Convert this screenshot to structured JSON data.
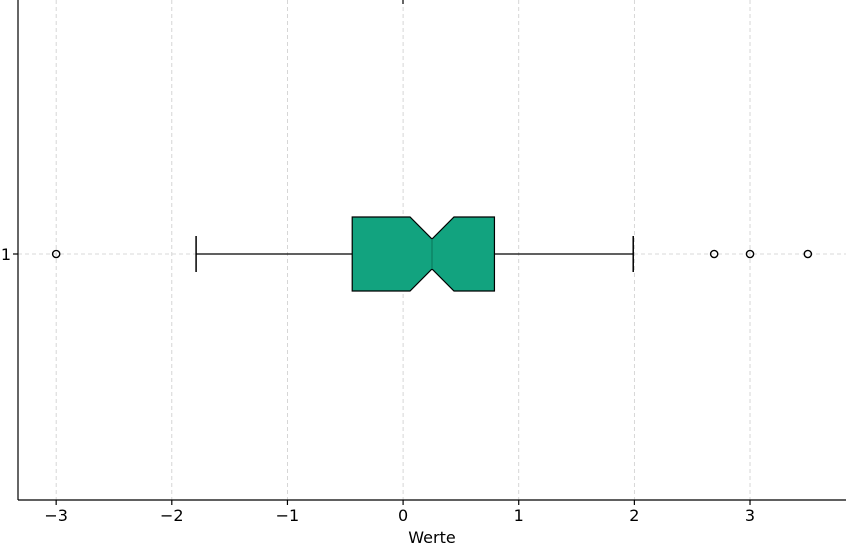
{
  "chart_data": {
    "type": "boxplot",
    "orientation": "horizontal",
    "notched": true,
    "categories": [
      "1"
    ],
    "xlabel": "Werte",
    "xlim": [
      -3.33,
      3.83
    ],
    "xticks": [
      -3,
      -2,
      -1,
      0,
      1,
      2,
      3
    ],
    "xtick_labels": [
      "−3",
      "−2",
      "−1",
      "0",
      "1",
      "2",
      "3"
    ],
    "grid": true,
    "box": {
      "category": "1",
      "whisker_low": -1.79,
      "q1": -0.44,
      "notch_low": 0.06,
      "median": 0.25,
      "notch_high": 0.44,
      "q3": 0.79,
      "whisker_high": 1.99,
      "fliers": [
        -3.0,
        2.69,
        3.0,
        3.5
      ]
    },
    "colors": {
      "box_fill": "#12a37f",
      "outline": "#000000",
      "grid": "#cccccc"
    }
  }
}
